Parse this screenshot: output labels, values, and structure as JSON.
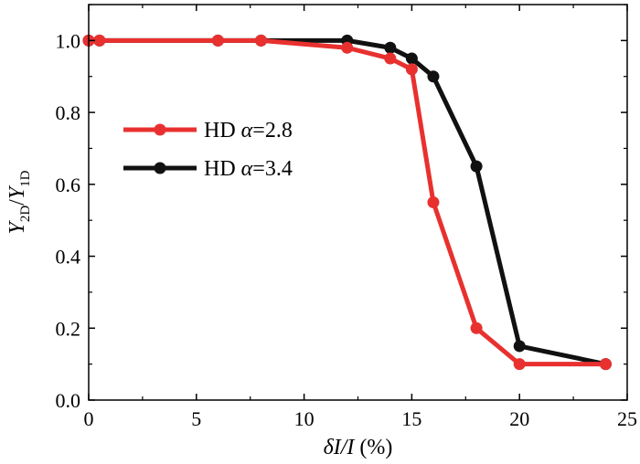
{
  "chart_data": {
    "type": "line",
    "xlabel": {
      "main": "δI/I",
      "suffix": " (%)"
    },
    "ylabel": {
      "num": "Y",
      "num_sub": "2D",
      "sep": "/",
      "den": "Y",
      "den_sub": "1D"
    },
    "xlim": [
      0,
      25
    ],
    "ylim": [
      0,
      1.1
    ],
    "xticks": [
      0,
      5,
      10,
      15,
      20,
      25
    ],
    "yticks": [
      0.0,
      0.2,
      0.4,
      0.6,
      0.8,
      1.0
    ],
    "xtick_labels": [
      "0",
      "5",
      "10",
      "15",
      "20",
      "25"
    ],
    "ytick_labels": [
      "0.0",
      "0.2",
      "0.4",
      "0.6",
      "0.8",
      "1.0"
    ],
    "grid": false,
    "legend_position": "left-middle",
    "series": [
      {
        "name": "HD α=2.8",
        "label_prefix": "HD ",
        "label_alpha": "α",
        "label_value": "=2.8",
        "color": "#e8312f",
        "x": [
          0,
          0.5,
          6,
          8,
          12,
          14,
          15,
          16,
          18,
          20,
          24
        ],
        "y": [
          1.0,
          1.0,
          1.0,
          1.0,
          0.98,
          0.95,
          0.92,
          0.55,
          0.2,
          0.1,
          0.1
        ]
      },
      {
        "name": "HD α=3.4",
        "label_prefix": "HD ",
        "label_alpha": "α",
        "label_value": "=3.4",
        "color": "#111111",
        "x": [
          0,
          0.5,
          6,
          8,
          12,
          14,
          15,
          16,
          18,
          20,
          24
        ],
        "y": [
          1.0,
          1.0,
          1.0,
          1.0,
          1.0,
          0.98,
          0.95,
          0.9,
          0.65,
          0.15,
          0.1
        ]
      }
    ]
  }
}
